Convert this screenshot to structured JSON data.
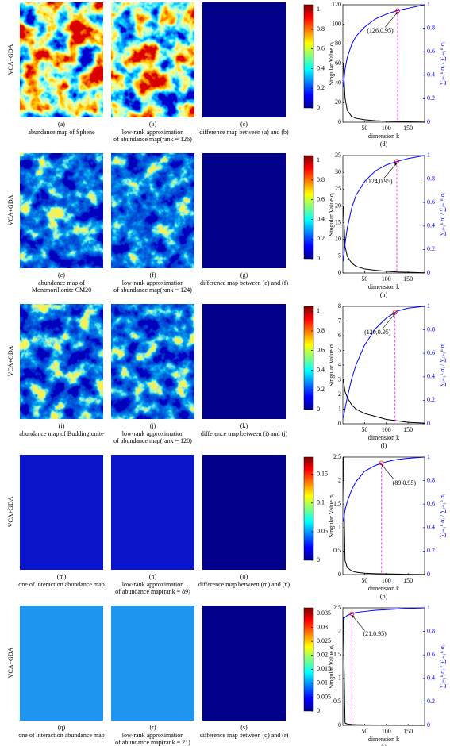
{
  "rows": [
    {
      "side_label": "VCA+GDA",
      "panels": [
        {
          "letter": "(a)",
          "caption": [
            "abundance map of Sphene"
          ]
        },
        {
          "letter": "(b)",
          "caption": [
            "low-rank approximation",
            "of abundance map(rank = 126)"
          ]
        },
        {
          "letter": "(c)",
          "caption": [
            "difference map between (a) and (b)"
          ]
        }
      ],
      "colorbar": {
        "clim": [
          0,
          1.05
        ],
        "ticks": [
          0,
          0.2,
          0.4,
          0.6,
          0.8,
          1
        ]
      },
      "chart": {
        "type": "line",
        "letter": "(d)",
        "xlabel": "dimension k",
        "ylabel": "Singular Value σᵢ",
        "y2label": "∑ᵢ₌₁ᵏ σᵢ / ∑ᵢ₌₁ⁿ σᵢ",
        "x": [
          1,
          5,
          10,
          20,
          30,
          50,
          75,
          100,
          125,
          150,
          188
        ],
        "xlim": [
          0,
          188
        ],
        "xticks": [
          50,
          100,
          150
        ],
        "ylim": [
          0,
          120
        ],
        "yticks": [
          0,
          20,
          40,
          60,
          80,
          100,
          120
        ],
        "y2lim": [
          0,
          1
        ],
        "y2ticks": [
          0,
          0.2,
          0.4,
          0.6,
          0.8,
          1
        ],
        "series": [
          {
            "color": "#000000",
            "values": [
              60,
              25,
              12,
              6,
              4,
              2.5,
              1.5,
              1,
              0.7,
              0.4,
              0.1
            ]
          },
          {
            "color": "#0000ff",
            "axis": "y2",
            "values": [
              0.3,
              0.45,
              0.55,
              0.66,
              0.73,
              0.81,
              0.88,
              0.92,
              0.95,
              0.97,
              1
            ]
          }
        ],
        "annotation": {
          "text": "(126,0.95)",
          "x": 126,
          "y": 0.95
        }
      }
    },
    {
      "side_label": "VCA+GDA",
      "panels": [
        {
          "letter": "(e)",
          "caption": [
            "abundance map of",
            "Montmorillonite CM20"
          ]
        },
        {
          "letter": "(f)",
          "caption": [
            "low-rank approximation",
            "of abundance map(rank = 124)"
          ]
        },
        {
          "letter": "(g)",
          "caption": [
            "difference map between (e) and (f)"
          ]
        }
      ],
      "colorbar": {
        "clim": [
          0,
          1.05
        ],
        "ticks": [
          0,
          0.2,
          0.4,
          0.6,
          0.8,
          1
        ]
      },
      "chart": {
        "type": "line",
        "letter": "(h)",
        "xlabel": "dimension k",
        "ylabel": "Singular Value σᵢ",
        "y2label": "∑ᵢ₌₁ᵏ σᵢ / ∑ᵢ₌₁ⁿ σᵢ",
        "x": [
          1,
          5,
          10,
          20,
          30,
          50,
          75,
          100,
          125,
          150,
          188
        ],
        "xlim": [
          0,
          188
        ],
        "xticks": [
          50,
          100,
          150
        ],
        "ylim": [
          0,
          35
        ],
        "yticks": [
          0,
          5,
          10,
          15,
          20,
          25,
          30,
          35
        ],
        "y2lim": [
          0,
          1
        ],
        "y2ticks": [
          0,
          0.2,
          0.4,
          0.6,
          0.8,
          1
        ],
        "series": [
          {
            "color": "#000000",
            "values": [
              20,
              8,
              5,
              3,
              2,
              1.2,
              0.8,
              0.5,
              0.3,
              0.2,
              0.05
            ]
          },
          {
            "color": "#0000ff",
            "axis": "y2",
            "values": [
              0.1,
              0.25,
              0.38,
              0.55,
              0.66,
              0.78,
              0.87,
              0.92,
              0.95,
              0.975,
              1
            ]
          }
        ],
        "annotation": {
          "text": "(124,0.95)",
          "x": 124,
          "y": 0.95
        }
      }
    },
    {
      "side_label": "VCA+GDA",
      "panels": [
        {
          "letter": "(i)",
          "caption": [
            "abundance map of Buddingtonite"
          ]
        },
        {
          "letter": "(j)",
          "caption": [
            "low-rank approximation",
            "of abundance map(rank = 120)"
          ]
        },
        {
          "letter": "(k)",
          "caption": [
            "difference map between (i) and (j)"
          ]
        }
      ],
      "colorbar": {
        "clim": [
          0,
          1.05
        ],
        "ticks": [
          0,
          0.2,
          0.4,
          0.6,
          0.8,
          1
        ]
      },
      "chart": {
        "type": "line",
        "letter": "(l)",
        "xlabel": "dimension k",
        "ylabel": "Singular Value σᵢ",
        "y2label": "∑ᵢ₌₁ᵏ σᵢ / ∑ᵢ₌₁ⁿ σᵢ",
        "x": [
          1,
          5,
          10,
          20,
          30,
          50,
          75,
          100,
          125,
          150,
          188
        ],
        "xlim": [
          0,
          188
        ],
        "xticks": [
          50,
          100,
          150
        ],
        "ylim": [
          0,
          8
        ],
        "yticks": [
          0,
          1,
          2,
          3,
          4,
          5,
          6,
          7,
          8
        ],
        "y2lim": [
          0,
          1
        ],
        "y2ticks": [
          0,
          0.2,
          0.4,
          0.6,
          0.8,
          1
        ],
        "series": [
          {
            "color": "#000000",
            "values": [
              3,
              2.2,
              1.8,
              1.3,
              1,
              0.7,
              0.5,
              0.3,
              0.2,
              0.1,
              0.05
            ]
          },
          {
            "color": "#0000ff",
            "axis": "y2",
            "values": [
              0.05,
              0.13,
              0.22,
              0.38,
              0.5,
              0.67,
              0.81,
              0.9,
              0.96,
              0.985,
              1
            ]
          }
        ],
        "annotation": {
          "text": "(120,0.95)",
          "x": 120,
          "y": 0.95
        }
      }
    },
    {
      "side_label": "VCA+GDA",
      "panels": [
        {
          "letter": "(m)",
          "caption": [
            "one of interaction abundance map"
          ]
        },
        {
          "letter": "(n)",
          "caption": [
            "low-rank approximation",
            "of abundance map(rank = 89)"
          ]
        },
        {
          "letter": "(o)",
          "caption": [
            "difference map between (m) and (n)"
          ]
        }
      ],
      "colorbar": {
        "clim": [
          0,
          0.18
        ],
        "ticks": [
          0,
          0.05,
          0.1,
          0.15
        ]
      },
      "chart": {
        "type": "line",
        "letter": "(p)",
        "xlabel": "dimension k",
        "ylabel": "Singular Value σᵢ",
        "y2label": "∑ᵢ₌₁ᵏ σᵢ / ∑ᵢ₌₁ⁿ σᵢ",
        "x": [
          1,
          5,
          10,
          20,
          30,
          50,
          75,
          100,
          125,
          150,
          188
        ],
        "xlim": [
          0,
          188
        ],
        "xticks": [
          50,
          100,
          150
        ],
        "ylim": [
          0,
          2.5
        ],
        "yticks": [
          0,
          0.5,
          1,
          1.5,
          2,
          2.5
        ],
        "y2lim": [
          0,
          1
        ],
        "y2ticks": [
          0,
          0.2,
          0.4,
          0.6,
          0.8,
          1
        ],
        "series": [
          {
            "color": "#000000",
            "values": [
              2.5,
              0.3,
              0.15,
              0.08,
              0.05,
              0.03,
              0.02,
              0.015,
              0.01,
              0.005,
              0.002
            ]
          },
          {
            "color": "#0000ff",
            "axis": "y2",
            "values": [
              0.45,
              0.55,
              0.62,
              0.72,
              0.79,
              0.88,
              0.93,
              0.96,
              0.98,
              0.99,
              1
            ]
          }
        ],
        "annotation": {
          "text": "(89,0.95)",
          "x": 89,
          "y": 0.95
        }
      }
    },
    {
      "side_label": "VCA+GDA",
      "panels": [
        {
          "letter": "(q)",
          "caption": [
            "one of interaction abundance map"
          ]
        },
        {
          "letter": "(r)",
          "caption": [
            "low-rank approximation",
            "of abundance map(rank = 21)"
          ]
        },
        {
          "letter": "(s)",
          "caption": [
            "difference map between (q) and (r)"
          ]
        }
      ],
      "colorbar": {
        "clim": [
          0,
          0.037
        ],
        "ticks": [
          0,
          0.005,
          0.01,
          0.015,
          0.02,
          0.025,
          0.03,
          0.035
        ]
      },
      "chart": {
        "type": "line",
        "letter": "(t)",
        "xlabel": "dimension k",
        "ylabel": "Singular Value σᵢ",
        "y2label": "∑ᵢ₌₁ᵏ σᵢ / ∑ᵢ₌₁ⁿ σᵢ",
        "x": [
          1,
          5,
          10,
          20,
          30,
          50,
          75,
          100,
          125,
          150,
          188
        ],
        "xlim": [
          0,
          188
        ],
        "xticks": [
          50,
          100,
          150
        ],
        "ylim": [
          0,
          2.5
        ],
        "yticks": [
          0,
          0.5,
          1,
          1.5,
          2,
          2.5
        ],
        "y2lim": [
          0,
          1
        ],
        "y2ticks": [
          0,
          0.2,
          0.4,
          0.6,
          0.8,
          1
        ],
        "series": [
          {
            "color": "#000000",
            "values": [
              2.3,
              0.05,
              0.03,
              0.02,
              0.015,
              0.01,
              0.008,
              0.006,
              0.004,
              0.002,
              0.001
            ]
          },
          {
            "color": "#0000ff",
            "axis": "y2",
            "values": [
              0.9,
              0.92,
              0.935,
              0.95,
              0.96,
              0.97,
              0.98,
              0.985,
              0.99,
              0.995,
              1
            ]
          }
        ],
        "annotation": {
          "text": "(21,0.95)",
          "x": 21,
          "y": 0.95
        }
      }
    }
  ]
}
